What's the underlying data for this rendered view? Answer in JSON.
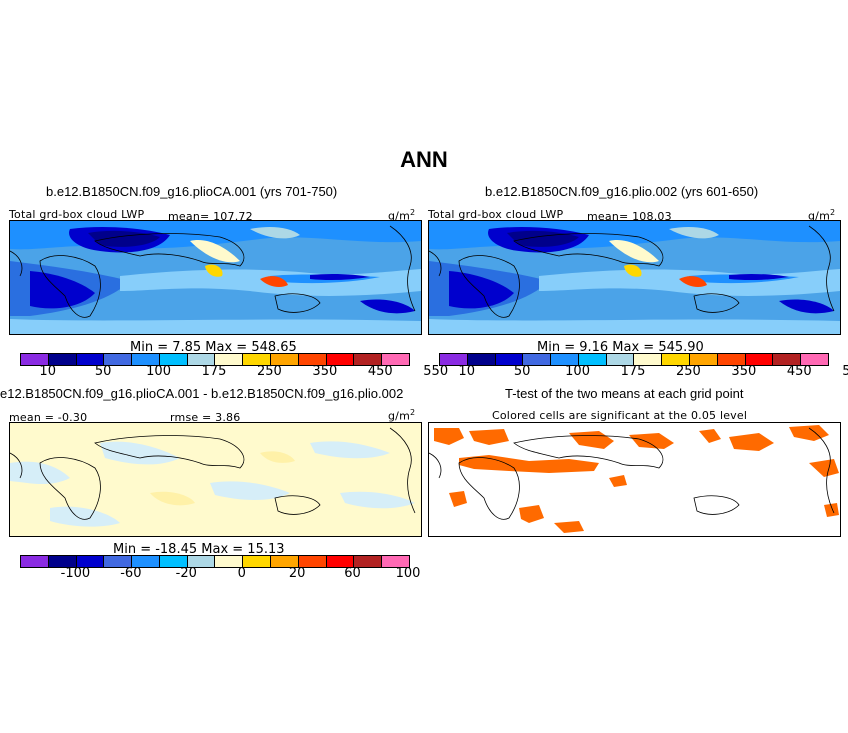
{
  "title": "ANN",
  "panel_left": {
    "case": "b.e12.B1850CN.f09_g16.plioCA.001 (yrs 701-750)",
    "variable": "Total grd-box cloud LWP",
    "mean": "mean= 107.72",
    "units": "g/m",
    "units_sup": "2",
    "minmax": "Min =    7.85  Max = 548.65"
  },
  "panel_right": {
    "case": "b.e12.B1850CN.f09_g16.plio.002 (yrs 601-650)",
    "variable": "Total grd-box cloud LWP",
    "mean": "mean= 108.03",
    "units": "g/m",
    "units_sup": "2",
    "minmax": "Min =    9.16  Max = 545.90"
  },
  "panel_diff": {
    "case": "e12.B1850CN.f09_g16.plioCA.001 - b.e12.B1850CN.f09_g16.plio.002",
    "mean": "mean =   -0.30",
    "rmse": "rmse =   3.86",
    "units": "g/m",
    "units_sup": "2",
    "minmax": "Min = -18.45  Max =  15.13"
  },
  "panel_ttest": {
    "title": "T-test of the two means at each grid point",
    "subtitle": "Colored cells are significant at the 0.05 level"
  },
  "colorbar_abs": {
    "colors": [
      "#8a2be2",
      "#00008b",
      "#0000cd",
      "#4169e1",
      "#1e90ff",
      "#00bfff",
      "#add8e6",
      "#fffacd",
      "#ffd700",
      "#ffa500",
      "#ff4500",
      "#ff0000",
      "#b22222",
      "#ff69b4"
    ],
    "labels": [
      "10",
      "50",
      "100",
      "175",
      "250",
      "350",
      "450",
      "550"
    ]
  },
  "colorbar_diff": {
    "colors": [
      "#8a2be2",
      "#00008b",
      "#0000cd",
      "#4169e1",
      "#1e90ff",
      "#00bfff",
      "#add8e6",
      "#fffacd",
      "#ffd700",
      "#ffa500",
      "#ff4500",
      "#ff0000",
      "#b22222",
      "#ff69b4"
    ],
    "labels": [
      "-100",
      "-60",
      "-20",
      "0",
      "20",
      "60",
      "100"
    ]
  }
}
